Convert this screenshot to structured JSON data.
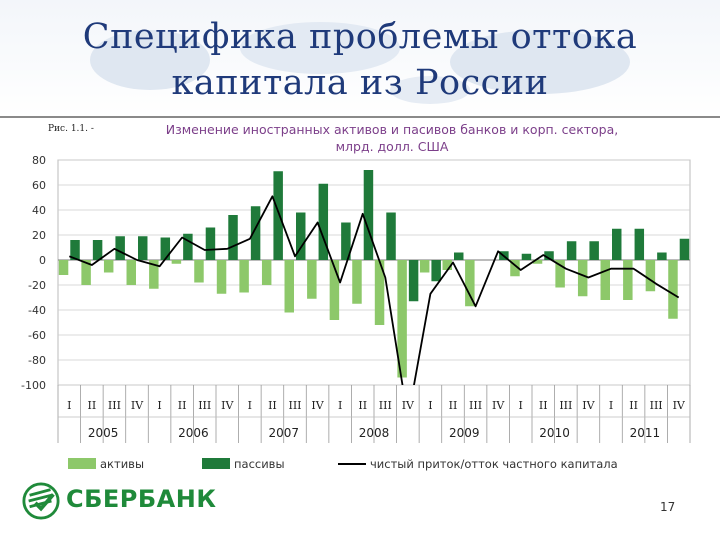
{
  "slide": {
    "title_line1": "Специфика проблемы оттока",
    "title_line2": "капитала из России",
    "figure_label": "Рис. 1.1. -",
    "page_number": "17",
    "brand": "СБЕРБАНК"
  },
  "chart_data": {
    "type": "bar",
    "title": "Изменение иностранных активов и пасивов банков и корп. сектора, млрд. долл. США",
    "title_line1": "Изменение иностранных активов и пасивов банков и корп. сектора,",
    "title_line2": "млрд. долл. США",
    "ylim": [
      -100,
      80
    ],
    "yticks": [
      80,
      60,
      40,
      20,
      0,
      -20,
      -40,
      -60,
      -80,
      -100
    ],
    "grid": true,
    "legend_position": "bottom",
    "quarters": [
      "I",
      "II",
      "III",
      "IV",
      "I",
      "II",
      "III",
      "IV",
      "I",
      "II",
      "III",
      "IV",
      "I",
      "II",
      "III",
      "IV",
      "I",
      "II",
      "III",
      "IV",
      "I",
      "II",
      "III",
      "IV",
      "I",
      "II",
      "III",
      "IV"
    ],
    "years": [
      "2005",
      "2006",
      "2007",
      "2008",
      "2009",
      "2010",
      "2011"
    ],
    "series": [
      {
        "name": "активы",
        "kind": "bar",
        "color": "#8dc86a",
        "values": [
          -12,
          -20,
          -10,
          -20,
          -23,
          -3,
          -18,
          -27,
          -26,
          -20,
          -42,
          -31,
          -48,
          -35,
          -52,
          -94,
          -10,
          -8,
          -37,
          0,
          -13,
          -3,
          -22,
          -29,
          -32,
          -32,
          -25,
          -47
        ]
      },
      {
        "name": "пассивы",
        "kind": "bar",
        "color": "#1f7a3a",
        "values": [
          16,
          16,
          19,
          19,
          18,
          21,
          26,
          36,
          43,
          71,
          38,
          61,
          30,
          72,
          38,
          -33,
          -17,
          6,
          0,
          7,
          5,
          7,
          15,
          15,
          25,
          25,
          6,
          17
        ]
      },
      {
        "name": "чистый приток/отток частного капитала",
        "kind": "line",
        "color": "#000000",
        "values": [
          3,
          -4,
          9,
          0,
          -5,
          18,
          8,
          9,
          17,
          51,
          3,
          30,
          -18,
          37,
          -14,
          -127,
          -27,
          -2,
          -37,
          7,
          -8,
          4,
          -7,
          -14,
          -7,
          -7,
          -19,
          -30
        ]
      }
    ],
    "legend": [
      "активы",
      "пассивы",
      "чистый приток/отток частного капитала"
    ]
  }
}
